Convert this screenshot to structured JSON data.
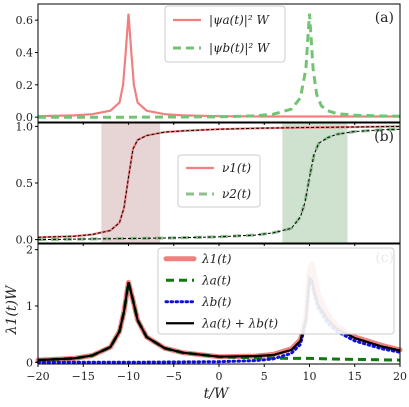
{
  "chart_data": [
    {
      "type": "line",
      "panel_label": "(a)",
      "xlim": [
        -20,
        20
      ],
      "ylim": [
        -0.03,
        0.7
      ],
      "yticks": [
        0.0,
        0.2,
        0.4,
        0.6
      ],
      "ytick_labels": [
        "0.0",
        "0.2",
        "0.4",
        "0.6"
      ],
      "grid": false,
      "legend_position": "top-center",
      "series": [
        {
          "name": "|ψa(t)|² W",
          "color": "#f08080",
          "style": "solid",
          "x": [
            -20,
            -16,
            -14,
            -12,
            -11,
            -10.6,
            -10.3,
            -10,
            -9.7,
            -9.4,
            -9,
            -8,
            -6,
            -4,
            0,
            5,
            10,
            15,
            20
          ],
          "y": [
            0.006,
            0.011,
            0.018,
            0.04,
            0.09,
            0.2,
            0.41,
            0.64,
            0.41,
            0.2,
            0.09,
            0.04,
            0.018,
            0.011,
            0.006,
            0.004,
            0.004,
            0.004,
            0.004
          ]
        },
        {
          "name": "|ψb(t)|² W",
          "color": "#72c472",
          "style": "dashed",
          "x": [
            -20,
            -10,
            0,
            4,
            6,
            8,
            9,
            9.6,
            10,
            10.4,
            10.8,
            11.3,
            12,
            13,
            15,
            18,
            20
          ],
          "y": [
            0.0,
            0.0,
            0.002,
            0.008,
            0.018,
            0.05,
            0.12,
            0.3,
            0.64,
            0.3,
            0.14,
            0.07,
            0.04,
            0.022,
            0.012,
            0.007,
            0.006
          ]
        }
      ]
    },
    {
      "type": "line",
      "panel_label": "(b)",
      "xlim": [
        -20,
        20
      ],
      "ylim": [
        -0.03,
        1.03
      ],
      "yticks": [
        0.0,
        0.5,
        1.0
      ],
      "ytick_labels": [
        "0.0",
        "0.5",
        "1.0"
      ],
      "grid": false,
      "legend_position": "center",
      "shaded_regions": [
        {
          "x0": -13,
          "x1": -6.5,
          "color": "#b07070"
        },
        {
          "x0": 7,
          "x1": 14.2,
          "color": "#5f9e5f"
        }
      ],
      "series": [
        {
          "name": "ν1(t)",
          "color": "#f08080",
          "style": "solid",
          "x": [
            -20,
            -16,
            -14,
            -12,
            -11,
            -10.5,
            -10,
            -9.5,
            -9,
            -8,
            -6,
            -4,
            0,
            5,
            10,
            15,
            20
          ],
          "y": [
            0.02,
            0.03,
            0.045,
            0.08,
            0.15,
            0.28,
            0.55,
            0.8,
            0.88,
            0.92,
            0.95,
            0.96,
            0.975,
            0.985,
            0.99,
            0.995,
            1.0
          ]
        },
        {
          "name": "ν2(t)",
          "color": "#8fbf8f",
          "style": "dashed",
          "x": [
            -20,
            -10,
            -5,
            0,
            4,
            6,
            8,
            9,
            9.5,
            10,
            10.5,
            11,
            12,
            13,
            15,
            18,
            20
          ],
          "y": [
            0.0,
            0.01,
            0.015,
            0.025,
            0.04,
            0.06,
            0.1,
            0.2,
            0.33,
            0.55,
            0.75,
            0.85,
            0.9,
            0.93,
            0.955,
            0.97,
            0.975
          ]
        }
      ]
    },
    {
      "type": "line",
      "panel_label": "(c)",
      "xlim": [
        -20,
        20
      ],
      "ylim": [
        -0.03,
        2.1
      ],
      "yticks": [
        0,
        1,
        2
      ],
      "ytick_labels": [
        "0",
        "1",
        "2"
      ],
      "xticks": [
        -20,
        -15,
        -10,
        -5,
        0,
        5,
        10,
        15,
        20
      ],
      "xtick_labels": [
        "−20",
        "−15",
        "−10",
        "−5",
        "0",
        "5",
        "10",
        "15",
        "20"
      ],
      "xlabel": "t/W",
      "ylabel": "λ1(t)W",
      "grid": false,
      "legend_position": "top-right",
      "series": [
        {
          "name": "λ1(t)",
          "color": "#f08080",
          "style": "thick",
          "x": [
            -20,
            -16,
            -14,
            -12,
            -11,
            -10.5,
            -10,
            -9.5,
            -9,
            -8,
            -6,
            -4,
            0,
            4,
            6,
            8,
            9,
            9.6,
            10,
            10.3,
            10.6,
            11,
            12,
            13,
            15,
            18,
            20
          ],
          "y": [
            0.04,
            0.07,
            0.12,
            0.27,
            0.55,
            0.9,
            1.42,
            1.1,
            0.75,
            0.45,
            0.25,
            0.17,
            0.1,
            0.11,
            0.14,
            0.24,
            0.4,
            0.8,
            1.65,
            1.75,
            1.5,
            1.2,
            0.85,
            0.65,
            0.45,
            0.3,
            0.22
          ]
        },
        {
          "name": "λa(t)",
          "color": "#0d7a0d",
          "style": "dashed",
          "x": [
            -20,
            -16,
            -14,
            -12,
            -11,
            -10.5,
            -10,
            -9.5,
            -9,
            -8,
            -6,
            -4,
            0,
            4,
            8,
            10,
            12,
            16,
            20
          ],
          "y": [
            0.04,
            0.07,
            0.12,
            0.27,
            0.55,
            0.9,
            1.42,
            1.1,
            0.75,
            0.45,
            0.25,
            0.17,
            0.1,
            0.08,
            0.07,
            0.07,
            0.06,
            0.05,
            0.04
          ]
        },
        {
          "name": "λb(t)",
          "color": "#1010dd",
          "style": "dotted",
          "x": [
            -20,
            -10,
            -5,
            0,
            4,
            6,
            8,
            9,
            9.6,
            10,
            10.3,
            10.6,
            11,
            12,
            13,
            15,
            18,
            20
          ],
          "y": [
            0.0,
            0.0,
            0.005,
            0.01,
            0.03,
            0.06,
            0.16,
            0.32,
            0.72,
            1.45,
            1.38,
            1.15,
            0.95,
            0.7,
            0.55,
            0.38,
            0.24,
            0.18
          ]
        },
        {
          "name": "λa(t) + λb(t)",
          "color": "#000000",
          "style": "solid",
          "x": [
            -20,
            -16,
            -14,
            -12,
            -11,
            -10.5,
            -10,
            -9.5,
            -9,
            -8,
            -6,
            -4,
            0,
            4,
            6,
            8,
            9,
            9.6,
            10,
            10.3,
            10.6,
            11,
            12,
            13,
            15,
            18,
            20
          ],
          "y": [
            0.04,
            0.07,
            0.12,
            0.27,
            0.55,
            0.9,
            1.42,
            1.1,
            0.75,
            0.45,
            0.25,
            0.17,
            0.1,
            0.11,
            0.13,
            0.22,
            0.38,
            0.78,
            1.5,
            1.45,
            1.22,
            1.02,
            0.76,
            0.6,
            0.43,
            0.28,
            0.21
          ]
        }
      ]
    }
  ]
}
